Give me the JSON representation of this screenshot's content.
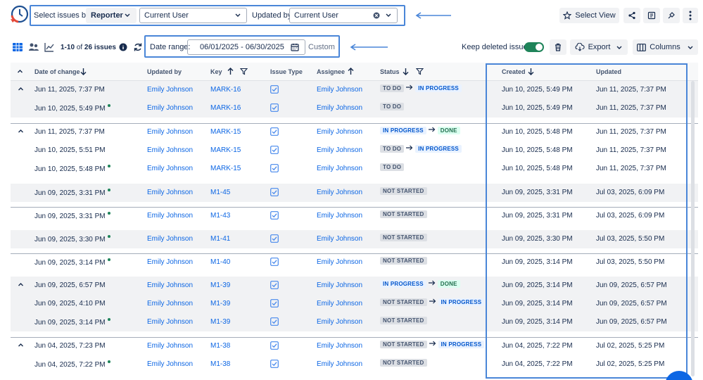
{
  "filters": {
    "select_issues_label": "Select issues by:",
    "issues_by_value": "Reporter",
    "user_value": "Current User",
    "updated_by_label": "Updated by:",
    "updated_by_value": "Current User"
  },
  "header_actions": {
    "select_view_label": "Select View",
    "share_icon": "share-icon",
    "export_doc_icon": "export-doc-icon",
    "feedback_icon": "feedback-icon",
    "more_icon": "more-vertical-icon"
  },
  "toolbar": {
    "pagination_range": "1-10",
    "pagination_of": "of",
    "pagination_total": "26 issues",
    "date_range_label": "Date range:",
    "date_range_value": "06/01/2025 - 06/30/2025",
    "date_preset": "Custom",
    "keep_deleted_label": "Keep deleted issues",
    "keep_deleted_on": true,
    "export_label": "Export",
    "columns_label": "Columns"
  },
  "colors": {
    "accent": "#0c66e4",
    "highlight_box": "#4a86d8",
    "toggle_on": "#1f845a"
  },
  "table": {
    "columns": [
      "Date of change",
      "Updated by",
      "Key",
      "Issue Type",
      "Assignee",
      "Status",
      "Created",
      "Updated"
    ],
    "rows": [
      {
        "date": "Jun 11, 2025, 7:37 PM",
        "dot": false,
        "collapse": true,
        "grey": true,
        "updated_by": "Emily Johnson",
        "key": "MARK-16",
        "assignee": "Emily Johnson",
        "status_from": "TO DO",
        "status_from_style": "grey",
        "status_to": "IN PROGRESS",
        "status_to_style": "blue",
        "created": "Jun 10, 2025, 5:49 PM",
        "updated": "Jun 11, 2025, 7:37 PM"
      },
      {
        "date": "Jun 10, 2025, 5:49 PM",
        "dot": true,
        "collapse": false,
        "grey": true,
        "updated_by": "Emily Johnson",
        "key": "MARK-16",
        "assignee": "Emily Johnson",
        "status_from": "TO DO",
        "status_from_style": "grey",
        "status_to": "",
        "status_to_style": "",
        "created": "Jun 10, 2025, 5:49 PM",
        "updated": "Jun 11, 2025, 7:37 PM"
      },
      {
        "date": "Jun 11, 2025, 7:37 PM",
        "dot": false,
        "collapse": true,
        "grey": false,
        "updated_by": "Emily Johnson",
        "key": "MARK-15",
        "assignee": "Emily Johnson",
        "status_from": "IN PROGRESS",
        "status_from_style": "blue",
        "status_to": "DONE",
        "status_to_style": "green",
        "created": "Jun 10, 2025, 5:48 PM",
        "updated": "Jun 11, 2025, 7:37 PM"
      },
      {
        "date": "Jun 10, 2025, 5:51 PM",
        "dot": false,
        "collapse": false,
        "grey": false,
        "updated_by": "Emily Johnson",
        "key": "MARK-15",
        "assignee": "Emily Johnson",
        "status_from": "TO DO",
        "status_from_style": "grey",
        "status_to": "IN PROGRESS",
        "status_to_style": "blue",
        "created": "Jun 10, 2025, 5:48 PM",
        "updated": "Jun 11, 2025, 7:37 PM"
      },
      {
        "date": "Jun 10, 2025, 5:48 PM",
        "dot": true,
        "collapse": false,
        "grey": false,
        "updated_by": "Emily Johnson",
        "key": "MARK-15",
        "assignee": "Emily Johnson",
        "status_from": "TO DO",
        "status_from_style": "grey",
        "status_to": "",
        "status_to_style": "",
        "created": "Jun 10, 2025, 5:48 PM",
        "updated": "Jun 11, 2025, 7:37 PM"
      },
      {
        "date": "Jun 09, 2025, 3:31 PM",
        "dot": true,
        "collapse": false,
        "grey": true,
        "updated_by": "Emily Johnson",
        "key": "M1-45",
        "assignee": "Emily Johnson",
        "status_from": "NOT STARTED",
        "status_from_style": "grey",
        "status_to": "",
        "status_to_style": "",
        "created": "Jun 09, 2025, 3:31 PM",
        "updated": "Jul 03, 2025, 6:09 PM"
      },
      {
        "date": "Jun 09, 2025, 3:31 PM",
        "dot": true,
        "collapse": false,
        "grey": false,
        "updated_by": "Emily Johnson",
        "key": "M1-43",
        "assignee": "Emily Johnson",
        "status_from": "NOT STARTED",
        "status_from_style": "grey",
        "status_to": "",
        "status_to_style": "",
        "created": "Jun 09, 2025, 3:31 PM",
        "updated": "Jul 03, 2025, 6:09 PM"
      },
      {
        "date": "Jun 09, 2025, 3:30 PM",
        "dot": true,
        "collapse": false,
        "grey": true,
        "updated_by": "Emily Johnson",
        "key": "M1-41",
        "assignee": "Emily Johnson",
        "status_from": "NOT STARTED",
        "status_from_style": "grey",
        "status_to": "",
        "status_to_style": "",
        "created": "Jun 09, 2025, 3:30 PM",
        "updated": "Jul 03, 2025, 5:50 PM"
      },
      {
        "date": "Jun 09, 2025, 3:14 PM",
        "dot": true,
        "collapse": false,
        "grey": false,
        "updated_by": "Emily Johnson",
        "key": "M1-40",
        "assignee": "Emily Johnson",
        "status_from": "NOT STARTED",
        "status_from_style": "grey",
        "status_to": "",
        "status_to_style": "",
        "created": "Jun 09, 2025, 3:14 PM",
        "updated": "Jul 03, 2025, 5:50 PM"
      },
      {
        "date": "Jun 09, 2025, 6:57 PM",
        "dot": false,
        "collapse": true,
        "grey": true,
        "updated_by": "Emily Johnson",
        "key": "M1-39",
        "assignee": "Emily Johnson",
        "status_from": "IN PROGRESS",
        "status_from_style": "blue",
        "status_to": "DONE",
        "status_to_style": "green",
        "created": "Jun 09, 2025, 3:14 PM",
        "updated": "Jun 09, 2025, 6:57 PM"
      },
      {
        "date": "Jun 09, 2025, 4:10 PM",
        "dot": false,
        "collapse": false,
        "grey": true,
        "updated_by": "Emily Johnson",
        "key": "M1-39",
        "assignee": "Emily Johnson",
        "status_from": "NOT STARTED",
        "status_from_style": "grey",
        "status_to": "IN PROGRESS",
        "status_to_style": "blue",
        "created": "Jun 09, 2025, 3:14 PM",
        "updated": "Jun 09, 2025, 6:57 PM"
      },
      {
        "date": "Jun 09, 2025, 3:14 PM",
        "dot": true,
        "collapse": false,
        "grey": true,
        "updated_by": "Emily Johnson",
        "key": "M1-39",
        "assignee": "Emily Johnson",
        "status_from": "NOT STARTED",
        "status_from_style": "grey",
        "status_to": "",
        "status_to_style": "",
        "created": "Jun 09, 2025, 3:14 PM",
        "updated": "Jun 09, 2025, 6:57 PM"
      },
      {
        "date": "Jun 04, 2025, 7:23 PM",
        "dot": false,
        "collapse": true,
        "grey": false,
        "updated_by": "Emily Johnson",
        "key": "M1-38",
        "assignee": "Emily Johnson",
        "status_from": "NOT STARTED",
        "status_from_style": "grey",
        "status_to": "IN PROGRESS",
        "status_to_style": "blue",
        "created": "Jun 04, 2025, 7:22 PM",
        "updated": "Jul 02, 2025, 5:25 PM"
      },
      {
        "date": "Jun 04, 2025, 7:22 PM",
        "dot": true,
        "collapse": false,
        "grey": false,
        "updated_by": "Emily Johnson",
        "key": "M1-38",
        "assignee": "Emily Johnson",
        "status_from": "NOT STARTED",
        "status_from_style": "grey",
        "status_to": "",
        "status_to_style": "",
        "created": "Jun 04, 2025, 7:22 PM",
        "updated": "Jul 02, 2025, 5:25 PM"
      }
    ]
  }
}
